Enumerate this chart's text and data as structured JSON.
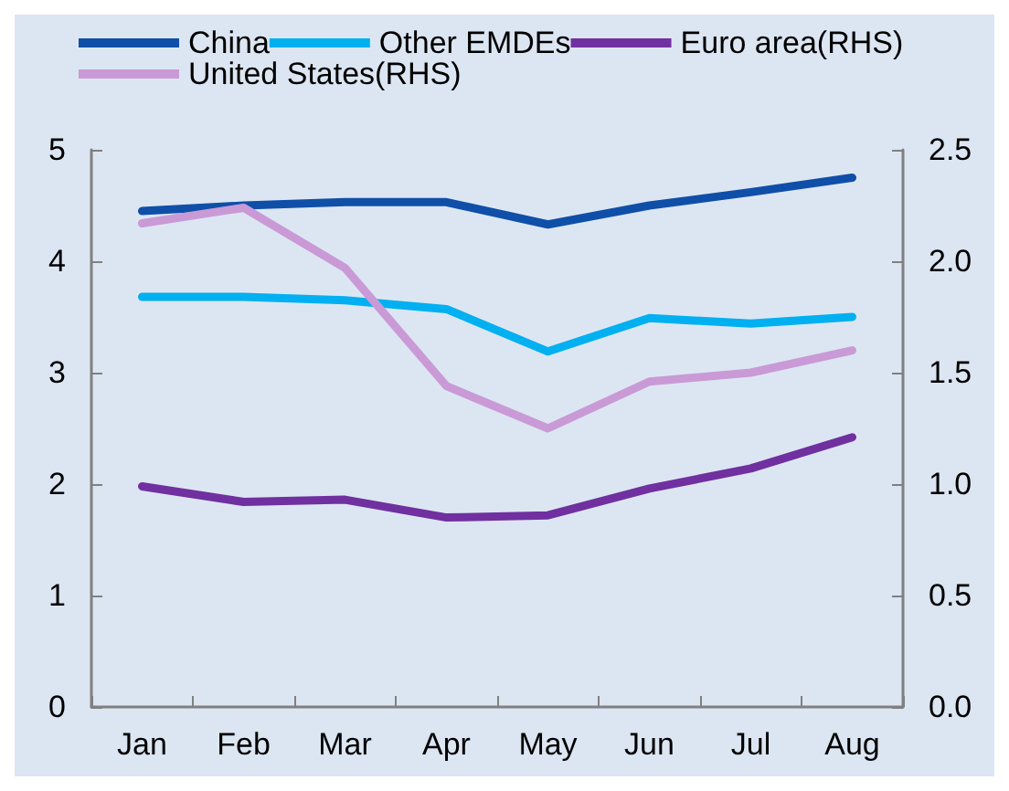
{
  "chart_data": {
    "type": "line",
    "categories": [
      "Jan",
      "Feb",
      "Mar",
      "Apr",
      "May",
      "Jun",
      "Jul",
      "Aug"
    ],
    "series": [
      {
        "name": "China",
        "color": "#0f4fa8",
        "values": [
          4.45,
          4.5,
          4.53,
          4.53,
          4.33,
          4.5,
          4.62,
          4.75
        ]
      },
      {
        "name": "Other EMDEs",
        "color": "#00b0f0",
        "values": [
          3.68,
          3.68,
          3.65,
          3.57,
          3.19,
          3.49,
          3.44,
          3.5
        ]
      },
      {
        "name": "Euro area(RHS)",
        "color": "#7030a0",
        "axis": "y2",
        "values": [
          0.99,
          0.92,
          0.93,
          0.85,
          0.86,
          0.98,
          1.07,
          1.21
        ]
      },
      {
        "name": "United States(RHS)",
        "color": "#c99ad6",
        "axis": "y2",
        "values": [
          2.17,
          2.24,
          1.97,
          1.44,
          1.25,
          1.46,
          1.5,
          1.6
        ]
      }
    ],
    "ylim": [
      0,
      5
    ],
    "yticks": [
      0,
      1,
      2,
      3,
      4,
      5
    ],
    "y2lim": [
      0,
      2.5
    ],
    "y2ticks": [
      {
        "value": 0,
        "label": "0.0"
      },
      0.5,
      {
        "value": 1,
        "label": "1.0"
      },
      1.5,
      {
        "value": 2,
        "label": "2.0"
      },
      2.5
    ],
    "grid": false,
    "legend": "top",
    "marker": "none",
    "line_style": "solid"
  }
}
